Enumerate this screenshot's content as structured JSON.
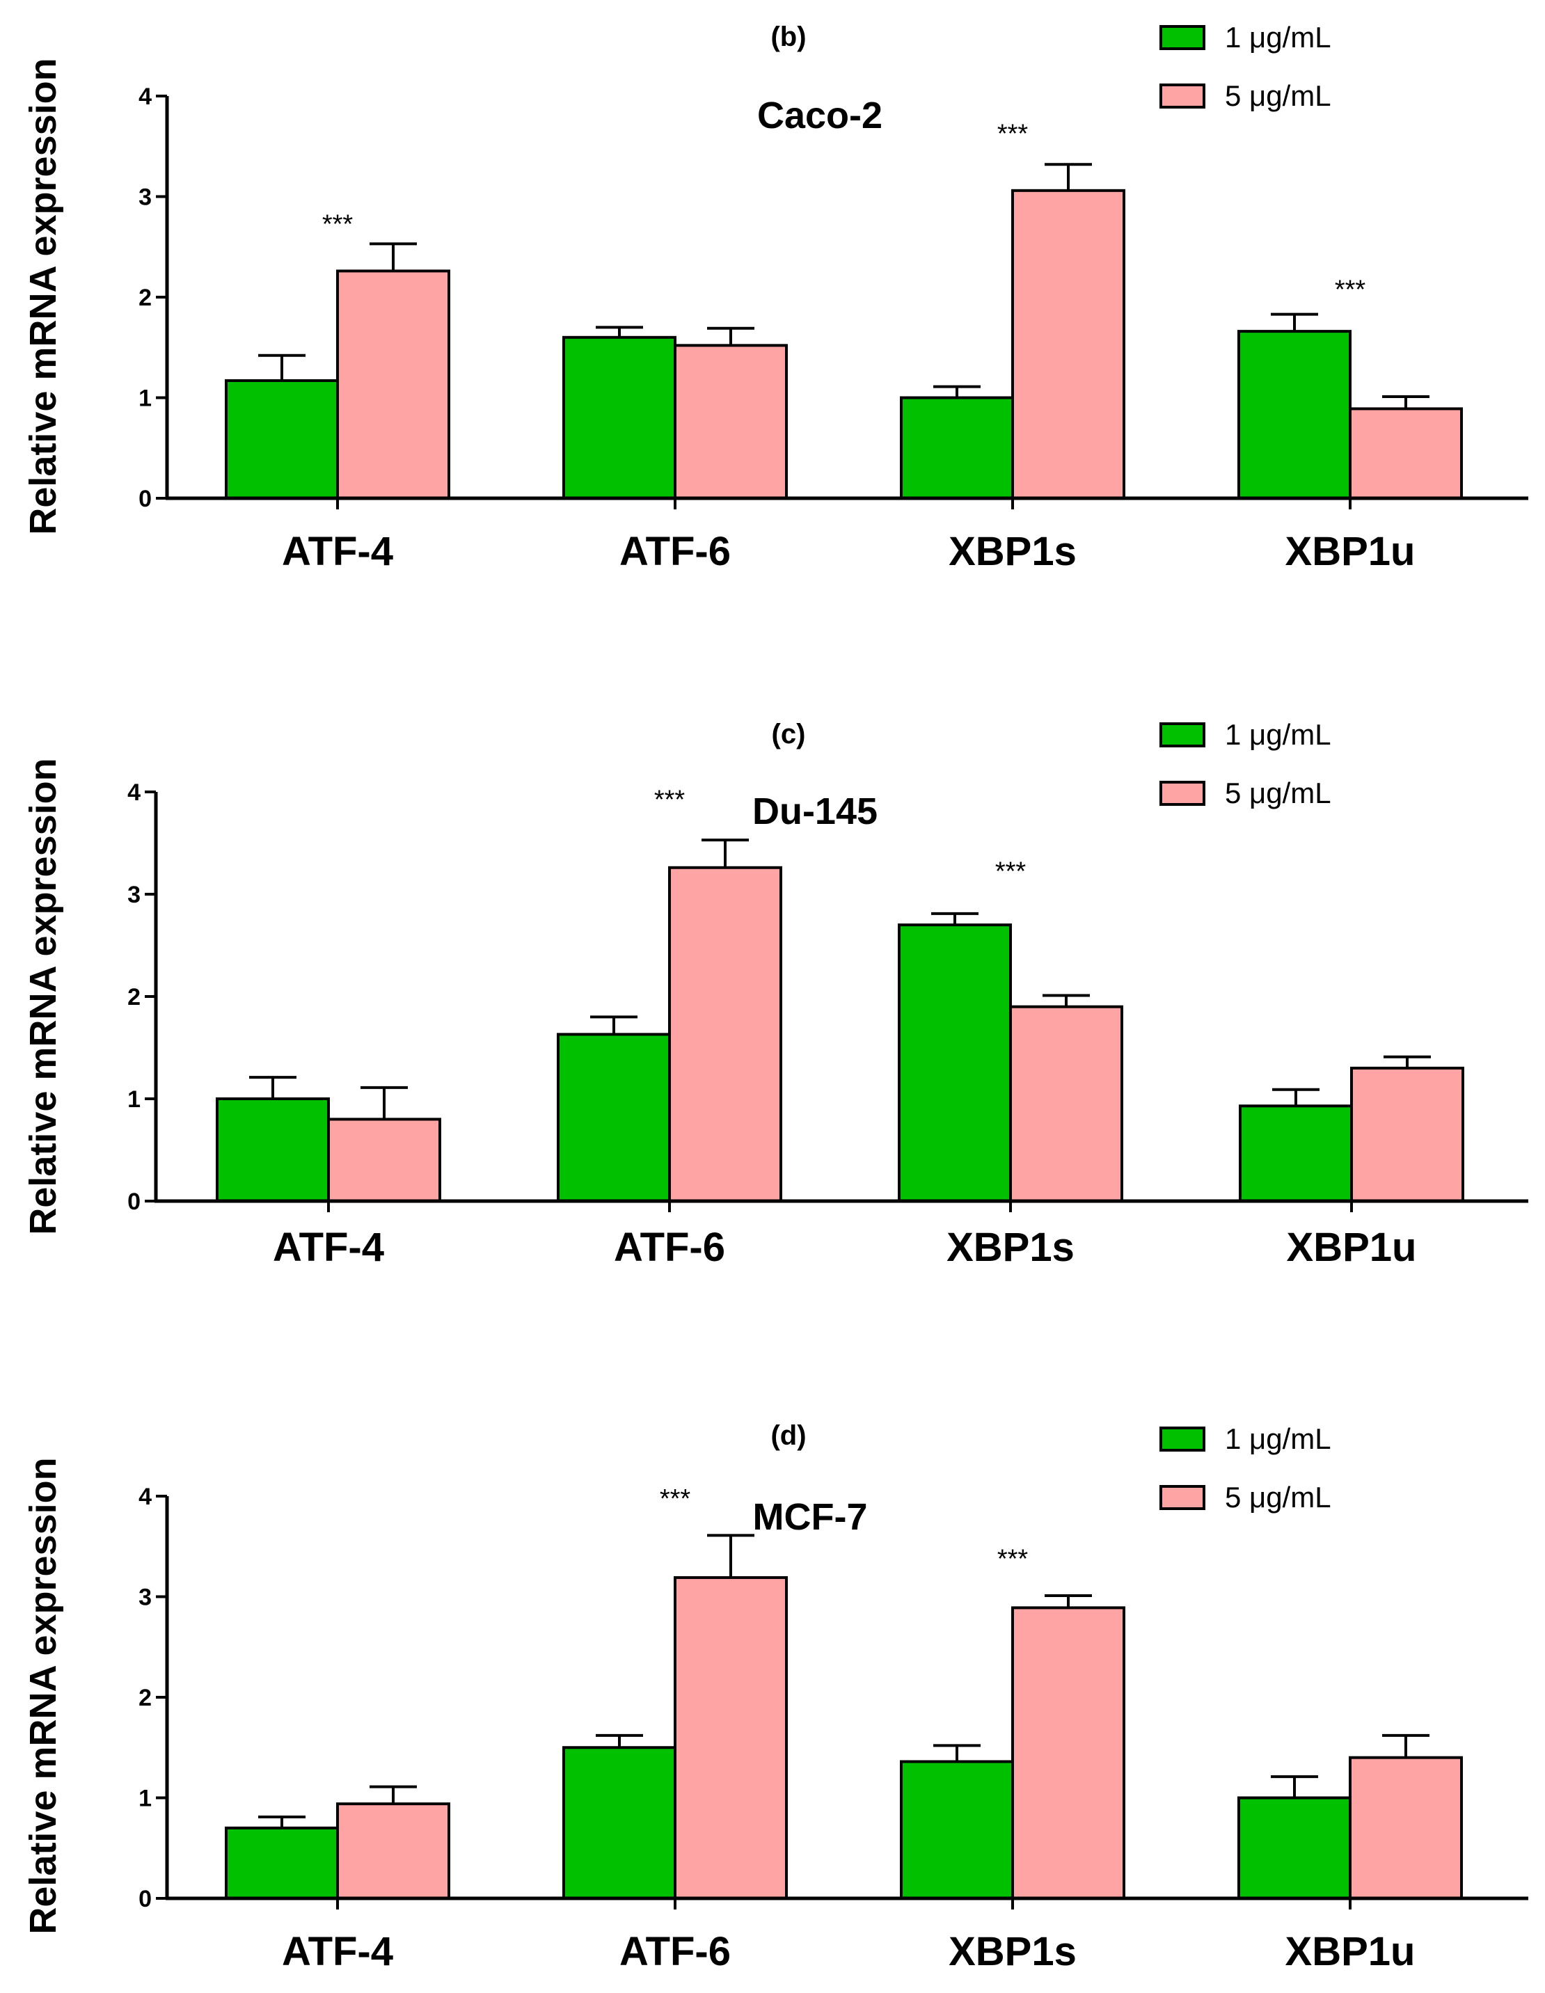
{
  "colors": {
    "series1": "#00c000",
    "series2": "#ffa4a4",
    "axis": "#000000"
  },
  "chart_data": [
    {
      "type": "bar",
      "panel": "(b)",
      "title": "Caco-2",
      "ylabel": "Relative mRNA expression",
      "xlabel": "",
      "ylim": [
        0,
        4
      ],
      "yticks": [
        "0",
        "1",
        "2",
        "3",
        "4"
      ],
      "categories": [
        "ATF-4",
        "ATF-6",
        "XBP1s",
        "XBP1u"
      ],
      "legend_position": "top-right",
      "series": [
        {
          "name": "1 μg/mL",
          "values": [
            1.17,
            1.6,
            1.0,
            1.66
          ],
          "errors": [
            0.25,
            0.1,
            0.11,
            0.17
          ]
        },
        {
          "name": "5 μg/mL",
          "values": [
            2.26,
            1.52,
            3.06,
            0.89
          ],
          "errors": [
            0.27,
            0.17,
            0.26,
            0.12
          ]
        }
      ],
      "annotations": [
        {
          "text": "***",
          "category": 0,
          "y": 2.75
        },
        {
          "text": "***",
          "category": 2,
          "y": 3.65
        },
        {
          "text": "***",
          "category": 3,
          "y": 2.1
        }
      ]
    },
    {
      "type": "bar",
      "panel": "(c)",
      "title": "Du-145",
      "ylabel": "Relative mRNA expression",
      "xlabel": "",
      "ylim": [
        0,
        4
      ],
      "yticks": [
        "0",
        "1",
        "2",
        "3",
        "4"
      ],
      "categories": [
        "ATF-4",
        "ATF-6",
        "XBP1s",
        "XBP1u"
      ],
      "legend_position": "top-right",
      "series": [
        {
          "name": "1 μg/mL",
          "values": [
            1.0,
            1.63,
            2.7,
            0.93
          ],
          "errors": [
            0.21,
            0.17,
            0.11,
            0.16
          ]
        },
        {
          "name": "5 μg/mL",
          "values": [
            0.8,
            3.26,
            1.9,
            1.3
          ],
          "errors": [
            0.31,
            0.27,
            0.11,
            0.11
          ]
        }
      ],
      "annotations": [
        {
          "text": "***",
          "category": 1,
          "y": 3.95
        },
        {
          "text": "***",
          "category": 2,
          "y": 3.25
        }
      ]
    },
    {
      "type": "bar",
      "panel": "(d)",
      "title": "MCF-7",
      "ylabel": "Relative mRNA expression",
      "xlabel": "",
      "ylim": [
        0,
        4
      ],
      "yticks": [
        "0",
        "1",
        "2",
        "3",
        "4"
      ],
      "categories": [
        "ATF-4",
        "ATF-6",
        "XBP1s",
        "XBP1u"
      ],
      "legend_position": "top-right",
      "series": [
        {
          "name": "1 μg/mL",
          "values": [
            0.7,
            1.5,
            1.36,
            1.0
          ],
          "errors": [
            0.11,
            0.12,
            0.16,
            0.21
          ]
        },
        {
          "name": "5 μg/mL",
          "values": [
            0.94,
            3.19,
            2.89,
            1.4
          ],
          "errors": [
            0.17,
            0.42,
            0.12,
            0.22
          ]
        }
      ],
      "annotations": [
        {
          "text": "***",
          "category": 1,
          "y": 4.0
        },
        {
          "text": "***",
          "category": 2,
          "y": 3.4
        }
      ]
    }
  ]
}
